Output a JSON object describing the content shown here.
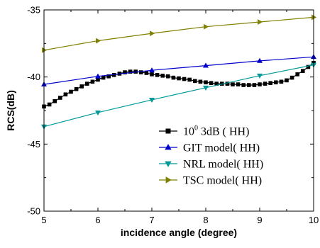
{
  "chart_data": {
    "type": "line",
    "title": "",
    "xlabel": "incidence angle (degree)",
    "ylabel": "RCS(dB)",
    "xlim": [
      5,
      10
    ],
    "ylim": [
      -50,
      -35
    ],
    "xticks": [
      "5",
      "6",
      "7",
      "8",
      "9",
      "10"
    ],
    "yticks": [
      "-35",
      "-40",
      "-45",
      "-50"
    ],
    "grid": false,
    "legend_position": "bottom-right",
    "series": [
      {
        "name": "10",
        "name_superscript": "0",
        "name_suffix": " 3dB ( HH)",
        "color": "#000000",
        "marker": "square",
        "x": [
          5.0,
          5.1,
          5.2,
          5.3,
          5.4,
          5.5,
          5.6,
          5.7,
          5.8,
          5.9,
          6.0,
          6.1,
          6.2,
          6.3,
          6.4,
          6.5,
          6.6,
          6.7,
          6.8,
          6.9,
          7.0,
          7.1,
          7.2,
          7.3,
          7.4,
          7.5,
          7.6,
          7.7,
          7.8,
          7.9,
          8.0,
          8.1,
          8.2,
          8.3,
          8.4,
          8.5,
          8.6,
          8.7,
          8.8,
          8.9,
          9.0,
          9.1,
          9.2,
          9.3,
          9.4,
          9.5,
          9.6,
          9.7,
          9.8,
          9.9,
          10.0
        ],
        "y": [
          -42.2,
          -42.05,
          -41.8,
          -41.55,
          -41.3,
          -41.1,
          -40.9,
          -40.7,
          -40.5,
          -40.35,
          -40.2,
          -40.05,
          -39.95,
          -39.85,
          -39.75,
          -39.65,
          -39.6,
          -39.6,
          -39.65,
          -39.7,
          -39.8,
          -39.85,
          -39.9,
          -39.95,
          -40.05,
          -40.1,
          -40.15,
          -40.2,
          -40.3,
          -40.35,
          -40.4,
          -40.45,
          -40.5,
          -40.5,
          -40.5,
          -40.55,
          -40.55,
          -40.6,
          -40.6,
          -40.6,
          -40.55,
          -40.5,
          -40.45,
          -40.4,
          -40.35,
          -40.25,
          -40.05,
          -39.8,
          -39.55,
          -39.25,
          -38.95
        ]
      },
      {
        "name": "GIT model( HH)",
        "color": "#0000cc",
        "marker": "triangle-up",
        "x": [
          5,
          6,
          7,
          8,
          9,
          10
        ],
        "y": [
          -40.55,
          -39.95,
          -39.5,
          -39.15,
          -38.8,
          -38.5
        ]
      },
      {
        "name": "NRL model( HH)",
        "color": "#009999",
        "marker": "triangle-down",
        "x": [
          5,
          6,
          7,
          8,
          9,
          10
        ],
        "y": [
          -43.7,
          -42.65,
          -41.7,
          -40.8,
          -39.9,
          -39.1
        ]
      },
      {
        "name": "TSC model( HH)",
        "color": "#808000",
        "marker": "triangle-right",
        "x": [
          5,
          6,
          7,
          8,
          9,
          10
        ],
        "y": [
          -38.0,
          -37.3,
          -36.75,
          -36.25,
          -35.9,
          -35.55
        ]
      }
    ]
  }
}
